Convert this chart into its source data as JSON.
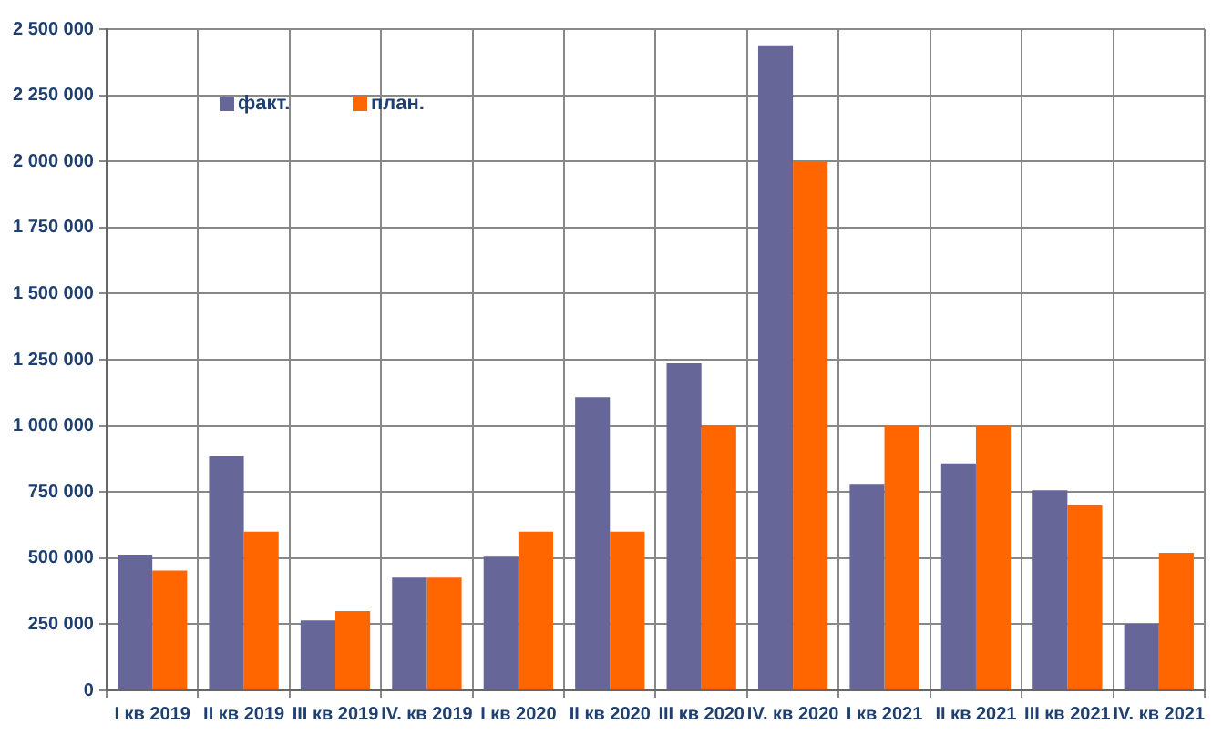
{
  "chart_data": {
    "type": "bar",
    "categories": [
      "I кв 2019",
      "II кв 2019",
      "III кв 2019",
      "IV. кв 2019",
      "I кв 2020",
      "II кв 2020",
      "III кв 2020",
      "IV. кв 2020",
      "I кв 2021",
      "II кв 2021",
      "III кв 2021",
      "IV. кв 2021"
    ],
    "series": [
      {
        "name": "факт.",
        "color": "#666699",
        "values": [
          513000,
          885000,
          264000,
          426000,
          505000,
          1108000,
          1236000,
          2439000,
          777000,
          858000,
          757000,
          251000
        ]
      },
      {
        "name": "план.",
        "color": "#ff6600",
        "values": [
          453000,
          600000,
          300000,
          426000,
          600000,
          600000,
          1000000,
          2000000,
          1000000,
          1000000,
          700000,
          520000
        ]
      }
    ],
    "ylim": [
      0,
      2500000
    ],
    "yticks": [
      {
        "value": 0,
        "label": "0"
      },
      {
        "value": 250000,
        "label": "250 000"
      },
      {
        "value": 500000,
        "label": "500 000"
      },
      {
        "value": 750000,
        "label": "750 000"
      },
      {
        "value": 1000000,
        "label": "1 000 000"
      },
      {
        "value": 1250000,
        "label": "1 250 000"
      },
      {
        "value": 1500000,
        "label": "1 500 000"
      },
      {
        "value": 1750000,
        "label": "1 750 000"
      },
      {
        "value": 2000000,
        "label": "2 000 000"
      },
      {
        "value": 2250000,
        "label": "2 250 000"
      },
      {
        "value": 2500000,
        "label": "2 500 000"
      }
    ],
    "grid": true,
    "legend": "top left"
  }
}
